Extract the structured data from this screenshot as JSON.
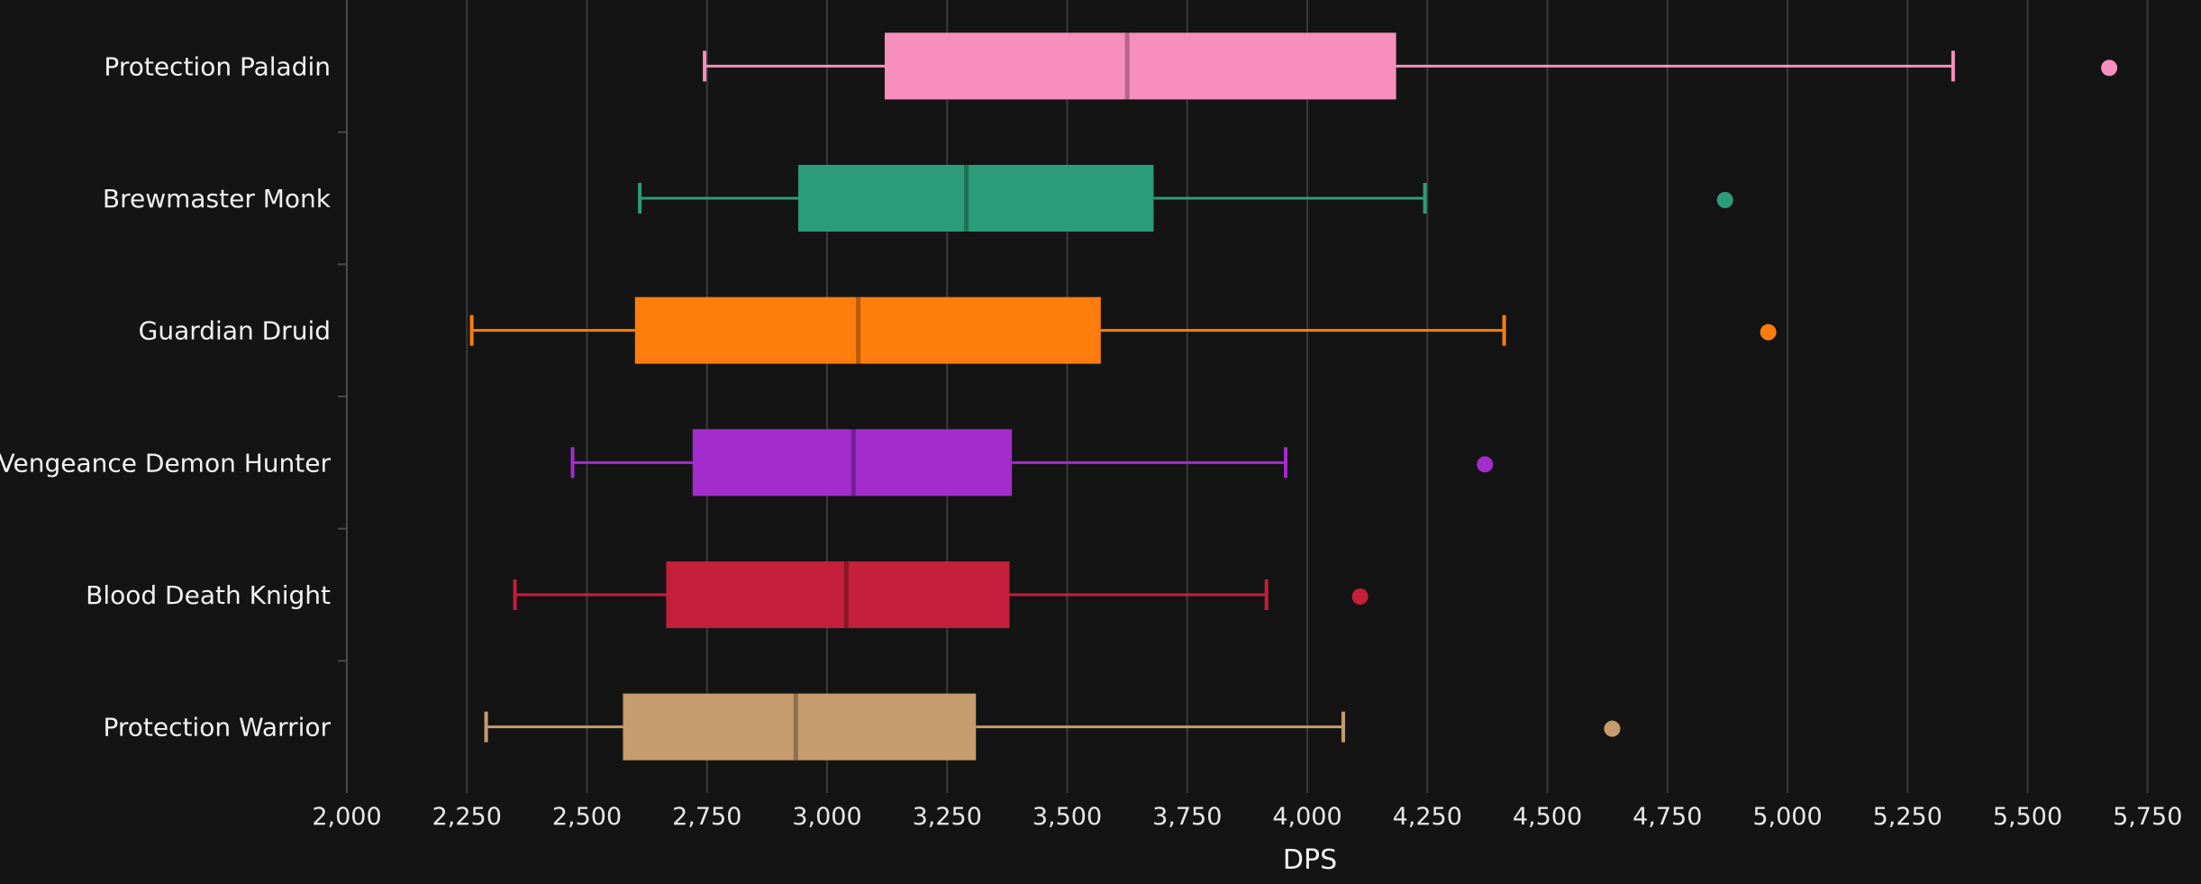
{
  "chart_data": {
    "type": "boxplot",
    "orientation": "horizontal",
    "title": "",
    "xlabel": "DPS",
    "ylabel": "",
    "xlim": [
      2000,
      5800
    ],
    "xticks": [
      2000,
      2250,
      2500,
      2750,
      3000,
      3250,
      3500,
      3750,
      4000,
      4250,
      4500,
      4750,
      5000,
      5250,
      5500,
      5750
    ],
    "grid": "vertical",
    "legend": "none",
    "series": [
      {
        "name": "Protection Paladin",
        "color": "#f78fbd",
        "whisker_low": 2745,
        "q1": 3120,
        "median": 3625,
        "q3": 4185,
        "whisker_high": 5345,
        "outliers": [
          5670
        ]
      },
      {
        "name": "Brewmaster Monk",
        "color": "#2b9d78",
        "whisker_low": 2610,
        "q1": 2940,
        "median": 3290,
        "q3": 3680,
        "whisker_high": 4245,
        "outliers": [
          4870
        ]
      },
      {
        "name": "Guardian Druid",
        "color": "#ff7d0c",
        "whisker_low": 2260,
        "q1": 2600,
        "median": 3065,
        "q3": 3570,
        "whisker_high": 4410,
        "outliers": [
          4960
        ]
      },
      {
        "name": "Vengeance Demon Hunter",
        "color": "#a32ccc",
        "whisker_low": 2470,
        "q1": 2720,
        "median": 3055,
        "q3": 3385,
        "whisker_high": 3955,
        "outliers": [
          4370
        ]
      },
      {
        "name": "Blood Death Knight",
        "color": "#c41f3b",
        "whisker_low": 2350,
        "q1": 2665,
        "median": 3040,
        "q3": 3380,
        "whisker_high": 3915,
        "outliers": [
          4110
        ]
      },
      {
        "name": "Protection Warrior",
        "color": "#c69b6d",
        "whisker_low": 2290,
        "q1": 2575,
        "median": 2935,
        "q3": 3310,
        "whisker_high": 4075,
        "outliers": [
          4635
        ]
      }
    ]
  }
}
